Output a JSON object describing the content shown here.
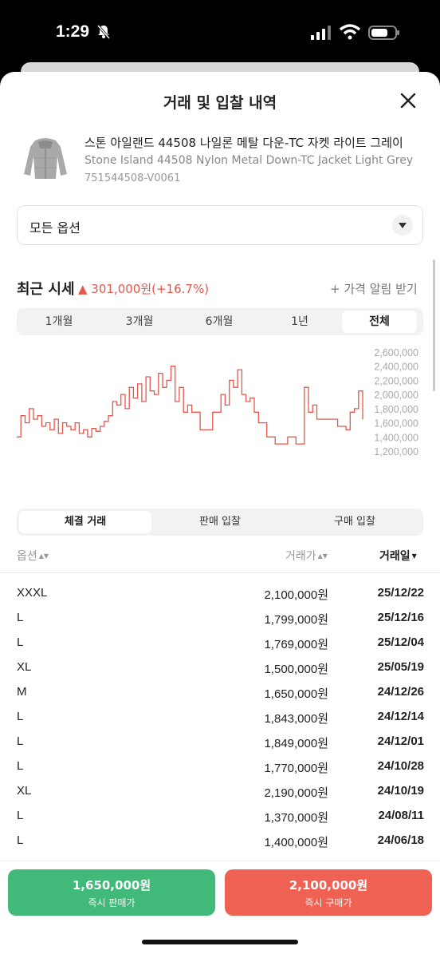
{
  "status_bar": {
    "time": "1:29"
  },
  "header": {
    "title": "거래 및 입찰 내역"
  },
  "product": {
    "name_ko": "스톤 아일랜드 44508 나일론 메탈 다운-TC 자켓 라이트 그레이",
    "name_en": "Stone Island 44508 Nylon Metal Down-TC Jacket Light Grey",
    "code": "751544508-V0061"
  },
  "option_select": {
    "value": "모든 옵션"
  },
  "recent_price": {
    "title": "최근 시세",
    "change": "▲ 301,000원(+16.7%)",
    "alert_link": "+ 가격 알림 받기",
    "change_color": "#e4574c"
  },
  "period_tabs": [
    {
      "label": "1개월",
      "active": false
    },
    {
      "label": "3개월",
      "active": false
    },
    {
      "label": "6개월",
      "active": false
    },
    {
      "label": "1년",
      "active": false
    },
    {
      "label": "전체",
      "active": true
    }
  ],
  "chart_data": {
    "type": "line",
    "y_ticks": [
      "2,600,000",
      "2,400,000",
      "2,200,000",
      "2,000,000",
      "1,800,000",
      "1,600,000",
      "1,400,000",
      "1,200,000"
    ],
    "ylim": [
      1200000,
      2600000
    ],
    "line_color": "#e4574c",
    "y": [
      1400000,
      1700000,
      1600000,
      1800000,
      1650000,
      1700000,
      1550000,
      1600000,
      1500000,
      1650000,
      1450000,
      1600000,
      1550000,
      1500000,
      1600000,
      1450000,
      1500000,
      1400000,
      1520000,
      1480000,
      1550000,
      1620000,
      1700000,
      1900000,
      1850000,
      2000000,
      1800000,
      2100000,
      1950000,
      2150000,
      1900000,
      2250000,
      2050000,
      2000000,
      2300000,
      2100000,
      2200000,
      2400000,
      1900000,
      2100000,
      1750000,
      1850000,
      1750000,
      1750000,
      1500000,
      1500000,
      1500000,
      1750000,
      1750000,
      2000000,
      1850000,
      2200000,
      2100000,
      2350000,
      2000000,
      1900000,
      1950000,
      1750000,
      1600000,
      1600000,
      1400000,
      1400000,
      1300000,
      1300000,
      1300000,
      1400000,
      1400000,
      1300000,
      1300000,
      2100000,
      1750000,
      1850000,
      1650000,
      1650000,
      1650000,
      1650000,
      1650000,
      1550000,
      1550000,
      1500000,
      1750000,
      1800000,
      2050000,
      1650000
    ]
  },
  "trade_tabs": [
    {
      "label": "체결 거래",
      "active": true
    },
    {
      "label": "판매 입찰",
      "active": false
    },
    {
      "label": "구매 입찰",
      "active": false
    }
  ],
  "table": {
    "headers": {
      "option": "옵션",
      "price": "거래가",
      "date": "거래일"
    },
    "rows": [
      {
        "option": "XXXL",
        "price": "2,100,000원",
        "date": "25/12/22"
      },
      {
        "option": "L",
        "price": "1,799,000원",
        "date": "25/12/16"
      },
      {
        "option": "L",
        "price": "1,769,000원",
        "date": "25/12/04"
      },
      {
        "option": "XL",
        "price": "1,500,000원",
        "date": "25/05/19"
      },
      {
        "option": "M",
        "price": "1,650,000원",
        "date": "24/12/26"
      },
      {
        "option": "L",
        "price": "1,843,000원",
        "date": "24/12/14"
      },
      {
        "option": "L",
        "price": "1,849,000원",
        "date": "24/12/01"
      },
      {
        "option": "L",
        "price": "1,770,000원",
        "date": "24/10/28"
      },
      {
        "option": "XL",
        "price": "2,190,000원",
        "date": "24/10/19"
      },
      {
        "option": "L",
        "price": "1,370,000원",
        "date": "24/08/11"
      },
      {
        "option": "L",
        "price": "1,400,000원",
        "date": "24/06/18"
      }
    ]
  },
  "bottom_buttons": {
    "sell": {
      "price": "1,650,000원",
      "label": "즉시 판매가",
      "color": "#41b979"
    },
    "buy": {
      "price": "2,100,000원",
      "label": "즉시 구매가",
      "color": "#ef6253"
    }
  }
}
